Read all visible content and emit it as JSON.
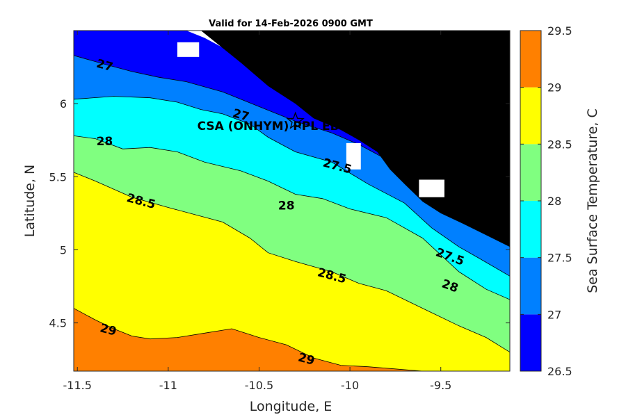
{
  "chart_data": {
    "type": "contour",
    "title": "Valid for 14-Feb-2026 0900 GMT",
    "xlabel": "Longitude, E",
    "ylabel": "Latitude, N",
    "xlim": [
      -11.52,
      -9.12
    ],
    "ylim": [
      4.17,
      6.5
    ],
    "x_ticks": [
      -11.5,
      -11,
      -10.5,
      -10,
      -9.5
    ],
    "x_tick_labels": [
      "-11.5",
      "-11",
      "-10.5",
      "-10",
      "-9.5"
    ],
    "y_ticks": [
      4.5,
      5,
      5.5,
      6
    ],
    "y_tick_labels": [
      "4.5",
      "5",
      "5.5",
      "6"
    ],
    "colorbar": {
      "label": "Sea Surface Temperature, C",
      "levels": [
        26.5,
        27,
        27.5,
        28,
        28.5,
        29,
        29.5
      ],
      "tick_labels": [
        "26.5",
        "27",
        "27.5",
        "28",
        "28.5",
        "29",
        "29.5"
      ],
      "colors": [
        "#0000ff",
        "#0080ff",
        "#00ffff",
        "#80ff80",
        "#ffff00",
        "#ff8000"
      ]
    },
    "land_color": "#000000",
    "bands": [
      {
        "name": "26.5-27",
        "color": "#0000ff",
        "upper": [
          [
            -11.52,
            6.5
          ],
          [
            -9.12,
            6.5
          ]
        ],
        "lower": [
          [
            -11.52,
            6.33
          ],
          [
            -11.35,
            6.27
          ],
          [
            -11.2,
            6.22
          ],
          [
            -11.05,
            6.18
          ],
          [
            -10.9,
            6.15
          ],
          [
            -10.7,
            6.08
          ],
          [
            -10.5,
            5.98
          ],
          [
            -10.3,
            5.88
          ],
          [
            -10.1,
            5.8
          ],
          [
            -9.95,
            5.72
          ],
          [
            -9.8,
            5.62
          ],
          [
            -9.6,
            5.5
          ],
          [
            -9.4,
            5.38
          ],
          [
            -9.25,
            5.25
          ],
          [
            -9.12,
            5.1
          ]
        ]
      },
      {
        "name": "27-27.5",
        "color": "#0080ff",
        "upper": [
          [
            -11.52,
            6.33
          ],
          [
            -11.35,
            6.27
          ],
          [
            -11.2,
            6.22
          ],
          [
            -11.05,
            6.18
          ],
          [
            -10.9,
            6.15
          ],
          [
            -10.7,
            6.08
          ],
          [
            -10.5,
            5.98
          ],
          [
            -10.3,
            5.88
          ],
          [
            -10.1,
            5.8
          ],
          [
            -9.95,
            5.72
          ],
          [
            -9.8,
            5.62
          ],
          [
            -9.6,
            5.5
          ],
          [
            -9.4,
            5.38
          ],
          [
            -9.25,
            5.25
          ],
          [
            -9.12,
            5.1
          ]
        ],
        "lower": [
          [
            -11.52,
            6.03
          ],
          [
            -11.3,
            6.05
          ],
          [
            -11.1,
            6.04
          ],
          [
            -10.95,
            6.01
          ],
          [
            -10.82,
            5.96
          ],
          [
            -10.7,
            5.93
          ],
          [
            -10.55,
            5.86
          ],
          [
            -10.45,
            5.77
          ],
          [
            -10.3,
            5.67
          ],
          [
            -10.1,
            5.6
          ],
          [
            -9.9,
            5.45
          ],
          [
            -9.7,
            5.32
          ],
          [
            -9.55,
            5.15
          ],
          [
            -9.4,
            5.02
          ],
          [
            -9.3,
            4.95
          ],
          [
            -9.12,
            4.82
          ]
        ]
      },
      {
        "name": "27.5-28",
        "color": "#00ffff",
        "upper": [
          [
            -11.52,
            6.03
          ],
          [
            -11.3,
            6.05
          ],
          [
            -11.1,
            6.04
          ],
          [
            -10.95,
            6.01
          ],
          [
            -10.82,
            5.96
          ],
          [
            -10.7,
            5.93
          ],
          [
            -10.55,
            5.86
          ],
          [
            -10.45,
            5.77
          ],
          [
            -10.3,
            5.67
          ],
          [
            -10.1,
            5.6
          ],
          [
            -9.9,
            5.45
          ],
          [
            -9.7,
            5.32
          ],
          [
            -9.55,
            5.15
          ],
          [
            -9.4,
            5.02
          ],
          [
            -9.3,
            4.95
          ],
          [
            -9.12,
            4.82
          ]
        ],
        "lower": [
          [
            -11.52,
            5.78
          ],
          [
            -11.4,
            5.76
          ],
          [
            -11.25,
            5.69
          ],
          [
            -11.1,
            5.7
          ],
          [
            -10.95,
            5.67
          ],
          [
            -10.8,
            5.6
          ],
          [
            -10.6,
            5.54
          ],
          [
            -10.45,
            5.47
          ],
          [
            -10.3,
            5.38
          ],
          [
            -10.15,
            5.35
          ],
          [
            -10.0,
            5.28
          ],
          [
            -9.8,
            5.22
          ],
          [
            -9.6,
            5.08
          ],
          [
            -9.4,
            4.85
          ],
          [
            -9.25,
            4.73
          ],
          [
            -9.12,
            4.66
          ]
        ]
      },
      {
        "name": "28-28.5",
        "color": "#80ff80",
        "upper": [
          [
            -11.52,
            5.78
          ],
          [
            -11.4,
            5.76
          ],
          [
            -11.25,
            5.69
          ],
          [
            -11.1,
            5.7
          ],
          [
            -10.95,
            5.67
          ],
          [
            -10.8,
            5.6
          ],
          [
            -10.6,
            5.54
          ],
          [
            -10.45,
            5.47
          ],
          [
            -10.3,
            5.38
          ],
          [
            -10.15,
            5.35
          ],
          [
            -10.0,
            5.28
          ],
          [
            -9.8,
            5.22
          ],
          [
            -9.6,
            5.08
          ],
          [
            -9.4,
            4.85
          ],
          [
            -9.25,
            4.73
          ],
          [
            -9.12,
            4.66
          ]
        ],
        "lower": [
          [
            -11.52,
            5.53
          ],
          [
            -11.4,
            5.47
          ],
          [
            -11.2,
            5.36
          ],
          [
            -11.0,
            5.29
          ],
          [
            -10.85,
            5.24
          ],
          [
            -10.7,
            5.19
          ],
          [
            -10.55,
            5.08
          ],
          [
            -10.45,
            4.98
          ],
          [
            -10.3,
            4.92
          ],
          [
            -10.1,
            4.85
          ],
          [
            -9.95,
            4.77
          ],
          [
            -9.8,
            4.72
          ],
          [
            -9.6,
            4.6
          ],
          [
            -9.4,
            4.48
          ],
          [
            -9.25,
            4.4
          ],
          [
            -9.12,
            4.3
          ]
        ]
      },
      {
        "name": "28.5-29",
        "color": "#ffff00",
        "upper": [
          [
            -11.52,
            5.53
          ],
          [
            -11.4,
            5.47
          ],
          [
            -11.2,
            5.36
          ],
          [
            -11.0,
            5.29
          ],
          [
            -10.85,
            5.24
          ],
          [
            -10.7,
            5.19
          ],
          [
            -10.55,
            5.08
          ],
          [
            -10.45,
            4.98
          ],
          [
            -10.3,
            4.92
          ],
          [
            -10.1,
            4.85
          ],
          [
            -9.95,
            4.77
          ],
          [
            -9.8,
            4.72
          ],
          [
            -9.6,
            4.6
          ],
          [
            -9.4,
            4.48
          ],
          [
            -9.25,
            4.4
          ],
          [
            -9.12,
            4.3
          ]
        ],
        "lower": [
          [
            -11.52,
            4.6
          ],
          [
            -11.4,
            4.52
          ],
          [
            -11.3,
            4.46
          ],
          [
            -11.2,
            4.41
          ],
          [
            -11.1,
            4.39
          ],
          [
            -10.95,
            4.4
          ],
          [
            -10.8,
            4.43
          ],
          [
            -10.65,
            4.46
          ],
          [
            -10.5,
            4.4
          ],
          [
            -10.35,
            4.35
          ],
          [
            -10.2,
            4.26
          ],
          [
            -10.05,
            4.21
          ],
          [
            -9.9,
            4.2
          ],
          [
            -9.6,
            4.17
          ]
        ]
      },
      {
        "name": "29-29.5",
        "color": "#ff8000",
        "upper": [
          [
            -11.52,
            4.6
          ],
          [
            -11.4,
            4.52
          ],
          [
            -11.3,
            4.46
          ],
          [
            -11.2,
            4.41
          ],
          [
            -11.1,
            4.39
          ],
          [
            -10.95,
            4.4
          ],
          [
            -10.8,
            4.43
          ],
          [
            -10.65,
            4.46
          ],
          [
            -10.5,
            4.4
          ],
          [
            -10.35,
            4.35
          ],
          [
            -10.2,
            4.26
          ],
          [
            -10.05,
            4.21
          ],
          [
            -9.9,
            4.2
          ],
          [
            -9.6,
            4.17
          ]
        ],
        "lower": [
          [
            -11.52,
            4.17
          ]
        ]
      }
    ],
    "coast": [
      [
        -11.52,
        6.5
      ],
      [
        -10.9,
        6.5
      ],
      [
        -10.8,
        6.45
      ],
      [
        -10.65,
        6.35
      ],
      [
        -10.45,
        6.2
      ],
      [
        -10.3,
        6.08
      ],
      [
        -10.2,
        5.98
      ],
      [
        -10.05,
        5.88
      ],
      [
        -9.95,
        5.8
      ],
      [
        -9.88,
        5.72
      ],
      [
        -9.75,
        5.62
      ],
      [
        -9.62,
        5.5
      ],
      [
        -9.5,
        5.38
      ],
      [
        -9.38,
        5.28
      ],
      [
        -9.25,
        5.2
      ],
      [
        -9.12,
        5.12
      ]
    ],
    "land": [
      [
        -10.82,
        6.5
      ],
      [
        -9.12,
        6.5
      ],
      [
        -9.12,
        5.02
      ],
      [
        -9.25,
        5.1
      ],
      [
        -9.38,
        5.18
      ],
      [
        -9.5,
        5.25
      ],
      [
        -9.6,
        5.33
      ],
      [
        -9.7,
        5.45
      ],
      [
        -9.78,
        5.55
      ],
      [
        -9.85,
        5.67
      ],
      [
        -9.95,
        5.75
      ],
      [
        -10.05,
        5.82
      ],
      [
        -10.2,
        5.9
      ],
      [
        -10.3,
        6.0
      ],
      [
        -10.45,
        6.12
      ],
      [
        -10.6,
        6.28
      ],
      [
        -10.72,
        6.4
      ]
    ],
    "contour_labels": [
      {
        "text": "27",
        "lon": -11.35,
        "lat": 6.26,
        "angle": 15
      },
      {
        "text": "27",
        "lon": -10.6,
        "lat": 5.92,
        "angle": 15
      },
      {
        "text": "28",
        "lon": -11.35,
        "lat": 5.74,
        "angle": 0
      },
      {
        "text": "27.5",
        "lon": -10.07,
        "lat": 5.57,
        "angle": 15
      },
      {
        "text": "28",
        "lon": -10.35,
        "lat": 5.3,
        "angle": 0
      },
      {
        "text": "28.5",
        "lon": -11.15,
        "lat": 5.33,
        "angle": 15
      },
      {
        "text": "28.5",
        "lon": -10.1,
        "lat": 4.82,
        "angle": 15
      },
      {
        "text": "27.5",
        "lon": -9.45,
        "lat": 4.95,
        "angle": 20
      },
      {
        "text": "28",
        "lon": -9.45,
        "lat": 4.75,
        "angle": 20
      },
      {
        "text": "29",
        "lon": -11.33,
        "lat": 4.45,
        "angle": 15
      },
      {
        "text": "29",
        "lon": -10.24,
        "lat": 4.25,
        "angle": 15
      }
    ],
    "station": {
      "name": "CSA (ONHYM) PPL EB",
      "lon": -10.3,
      "lat": 5.88,
      "label_lon": -10.84,
      "label_lat": 5.82
    }
  }
}
